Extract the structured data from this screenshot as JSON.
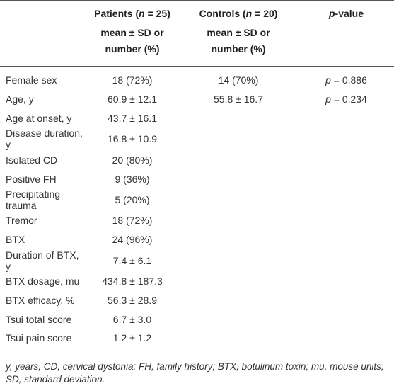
{
  "table": {
    "header": [
      {
        "title": [
          "Patients (",
          "n",
          " = 25)"
        ],
        "subtitle": "mean ± SD or number (%)"
      },
      {
        "title": [
          "Controls (",
          "n",
          " = 20)"
        ],
        "subtitle": "mean ± SD or number (%)"
      },
      {
        "title": [
          "p",
          "-value"
        ]
      }
    ],
    "rows": [
      [
        "Female sex",
        "18 (72%)",
        "14 (70%)",
        [
          "p",
          " = 0.886"
        ]
      ],
      [
        "Age, y",
        "60.9 ± 12.1",
        "55.8 ± 16.7",
        [
          "p",
          " = 0.234"
        ]
      ],
      [
        "Age at onset, y",
        "43.7 ± 16.1"
      ],
      [
        "Disease duration, y",
        "16.8 ± 10.9"
      ],
      [
        "Isolated CD",
        "20 (80%)"
      ],
      [
        "Positive FH",
        "9 (36%)"
      ],
      [
        "Precipitating trauma",
        "5 (20%)"
      ],
      [
        "Tremor",
        "18 (72%)"
      ],
      [
        "BTX",
        "24 (96%)"
      ],
      [
        "Duration of BTX, y",
        "7.4 ± 6.1"
      ],
      [
        "BTX dosage, mu",
        "434.8 ± 187.3"
      ],
      [
        "BTX efficacy, %",
        "56.3 ± 28.9"
      ],
      [
        "Tsui total score",
        "6.7 ± 3.0"
      ],
      [
        "Tsui pain score",
        "1.2 ± 1.2"
      ]
    ],
    "footnote": "y, years, CD, cervical dystonia; FH, family history; BTX, botulinum toxin; mu, mouse units; SD, standard deviation."
  }
}
